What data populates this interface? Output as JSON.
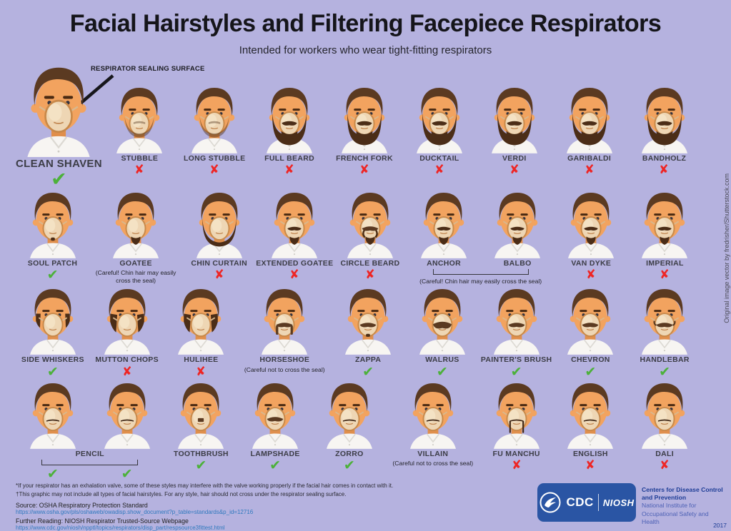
{
  "title": "Facial Hairstyles and Filtering Facepiece Respirators",
  "subtitle": "Intended for workers who wear tight-fitting respirators",
  "callout_label": "RESPIRATOR SEALING SURFACE",
  "credit": "Original image vector by fredrisher/Shutterstock.com",
  "year": "2017",
  "marks": {
    "check": "✔",
    "cross": "✘"
  },
  "colors": {
    "background": "#b5b2df",
    "check_green": "#4cb13a",
    "cross_red": "#ee2524",
    "link_blue": "#2f79be",
    "badge_blue": "#2a55a4",
    "agency_dark_blue": "#1e3d96",
    "agency_light_blue": "#4d61b5"
  },
  "rows": [
    {
      "items": [
        {
          "label": "CLEAN SHAVEN",
          "mark": "check",
          "style": "none",
          "featured": true
        },
        {
          "label": "STUBBLE",
          "mark": "cross",
          "style": "stubble"
        },
        {
          "label": "LONG STUBBLE",
          "mark": "cross",
          "style": "stubble"
        },
        {
          "label": "FULL BEARD",
          "mark": "cross",
          "style": "beard"
        },
        {
          "label": "FRENCH FORK",
          "mark": "cross",
          "style": "beard"
        },
        {
          "label": "DUCKTAIL",
          "mark": "cross",
          "style": "beard"
        },
        {
          "label": "VERDI",
          "mark": "cross",
          "style": "beard"
        },
        {
          "label": "GARIBALDI",
          "mark": "cross",
          "style": "beard"
        },
        {
          "label": "BANDHOLZ",
          "mark": "cross",
          "style": "beard"
        }
      ]
    },
    {
      "items": [
        {
          "label": "SOUL PATCH",
          "mark": "check",
          "style": "soulpatch"
        },
        {
          "label": "GOATEE",
          "mark": null,
          "note": "(Careful! Chin hair may easily cross the seal)",
          "style": "goatee"
        },
        {
          "label": "CHIN CURTAIN",
          "mark": "cross",
          "style": "chinstrap"
        },
        {
          "label": "EXTENDED GOATEE",
          "mark": "cross",
          "style": "vandyke"
        },
        {
          "label": "CIRCLE BEARD",
          "mark": "cross",
          "style": "circle"
        },
        {
          "pair": true,
          "labels": [
            "ANCHOR",
            "BALBO"
          ],
          "label_position": "split",
          "note": "(Careful! Chin hair may easily cross the seal)",
          "styles": [
            "vandyke",
            "vandyke"
          ],
          "marks": []
        },
        {
          "label": "VAN DYKE",
          "mark": "cross",
          "style": "vandyke"
        },
        {
          "label": "IMPERIAL",
          "mark": "cross",
          "style": "vandyke"
        }
      ]
    },
    {
      "items": [
        {
          "label": "SIDE WHISKERS",
          "mark": "check",
          "style": "sideburns"
        },
        {
          "label": "MUTTON CHOPS",
          "mark": "cross",
          "style": "muttonchops"
        },
        {
          "label": "HULIHEE",
          "mark": "cross",
          "style": "muttonchops"
        },
        {
          "label": "HORSESHOE",
          "mark": null,
          "note": "(Careful not to cross the seal)",
          "style": "horseshoe"
        },
        {
          "label": "ZAPPA",
          "mark": "check",
          "style": "zappa"
        },
        {
          "label": "WALRUS",
          "mark": "check",
          "style": "walrus"
        },
        {
          "label": "PAINTER'S BRUSH",
          "mark": "check",
          "style": "mustache"
        },
        {
          "label": "CHEVRON",
          "mark": "check",
          "style": "mustache"
        },
        {
          "label": "HANDLEBAR",
          "mark": "check",
          "style": "handlebar"
        }
      ]
    },
    {
      "items": [
        {
          "pair": true,
          "labels": [
            "PENCIL"
          ],
          "label_position": "center",
          "styles": [
            "thin",
            "thin"
          ],
          "marks": [
            "check",
            "check"
          ]
        },
        {
          "label": "TOOTHBRUSH",
          "mark": "check",
          "style": "toothbrush"
        },
        {
          "label": "LAMPSHADE",
          "mark": "check",
          "style": "mustache"
        },
        {
          "label": "ZORRO",
          "mark": "check",
          "style": "thin"
        },
        {
          "label": "VILLAIN",
          "mark": null,
          "note": "(Careful not to cross the seal)",
          "style": "thin"
        },
        {
          "label": "FU MANCHU",
          "mark": "cross",
          "style": "fumanchu"
        },
        {
          "label": "ENGLISH",
          "mark": "cross",
          "style": "thin"
        },
        {
          "label": "DALI",
          "mark": "cross",
          "style": "thin"
        }
      ]
    }
  ],
  "footnotes": [
    "*If your respirator has an exhalation valve, some of these styles may interfere with the valve working properly if the facial hair comes in contact with it.",
    "†This graphic may not include all types of facial hairstyles. For any style, hair should not cross under the respirator sealing surface."
  ],
  "source": {
    "label": "Source: OSHA Respiratory Protection Standard",
    "link": "https://www.osha.gov/pls/oshaweb/owadisp.show_document?p_table=standards&p_id=12716"
  },
  "further": {
    "label": "Further Reading: NIOSH Respirator Trusted-Source Webpage",
    "link": "https://www.cdc.gov/niosh/npptl/topics/respirators/disp_part/respsource3fittest.html"
  },
  "agency": {
    "cdc": "CDC",
    "niosh": "NIOSH",
    "bold": "Centers for Disease Control and Prevention",
    "light": "National Institute for Occupational Safety and Health"
  }
}
